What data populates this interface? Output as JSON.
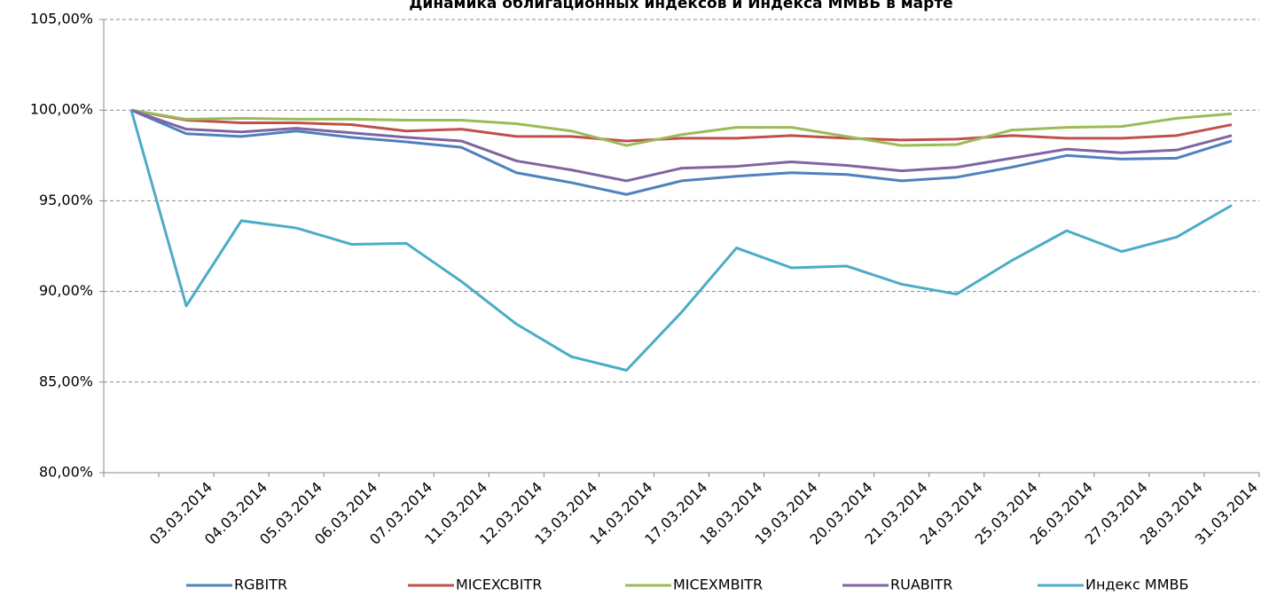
{
  "chart_data": {
    "type": "line",
    "title": "Динамика облигационных индексов и Индекса ММВБ в марте",
    "categories": [
      null,
      "03.03.2014",
      "04.03.2014",
      "05.03.2014",
      "06.03.2014",
      "07.03.2014",
      "11.03.2014",
      "12.03.2014",
      "13.03.2014",
      "14.03.2014",
      "17.03.2014",
      "18.03.2014",
      "19.03.2014",
      "20.03.2014",
      "21.03.2014",
      "24.03.2014",
      "25.03.2014",
      "26.03.2014",
      "27.03.2014",
      "28.03.2014",
      "31.03.2014"
    ],
    "series": [
      {
        "name": "RGBITR",
        "color": "#4f81bd",
        "values": [
          100,
          98.7,
          98.55,
          98.85,
          98.5,
          98.25,
          97.95,
          96.55,
          96.0,
          95.35,
          96.1,
          96.35,
          96.55,
          96.45,
          96.1,
          96.3,
          96.85,
          97.5,
          97.3,
          97.35,
          98.3
        ]
      },
      {
        "name": "MICEXCBITR",
        "color": "#c0504d",
        "values": [
          100,
          99.45,
          99.3,
          99.3,
          99.2,
          98.85,
          98.95,
          98.55,
          98.55,
          98.3,
          98.45,
          98.45,
          98.6,
          98.45,
          98.35,
          98.4,
          98.6,
          98.45,
          98.45,
          98.6,
          99.2
        ]
      },
      {
        "name": "MICEXMBITR",
        "color": "#9bbb59",
        "values": [
          100,
          99.5,
          99.55,
          99.5,
          99.5,
          99.45,
          99.45,
          99.25,
          98.85,
          98.05,
          98.65,
          99.05,
          99.05,
          98.55,
          98.05,
          98.1,
          98.9,
          99.05,
          99.1,
          99.55,
          99.8
        ]
      },
      {
        "name": "RUABITR",
        "color": "#8064a2",
        "values": [
          100,
          98.95,
          98.8,
          99.0,
          98.75,
          98.5,
          98.3,
          97.2,
          96.7,
          96.1,
          96.8,
          96.9,
          97.15,
          96.95,
          96.65,
          96.85,
          97.35,
          97.85,
          97.65,
          97.8,
          98.6
        ]
      },
      {
        "name": "Индекс ММВБ",
        "color": "#4bacc6",
        "values": [
          100,
          89.2,
          93.9,
          93.5,
          92.6,
          92.65,
          90.55,
          88.2,
          86.4,
          85.65,
          88.85,
          92.4,
          91.3,
          91.4,
          90.4,
          89.85,
          91.7,
          93.35,
          92.2,
          93.0,
          94.75
        ]
      }
    ],
    "ylim": [
      80,
      105
    ],
    "yticks": [
      {
        "value": 80,
        "label": "80,00%"
      },
      {
        "value": 85,
        "label": "85,00%"
      },
      {
        "value": 90,
        "label": "90,00%"
      },
      {
        "value": 95,
        "label": "95,00%"
      },
      {
        "value": 100,
        "label": "100,00%"
      },
      {
        "value": 105,
        "label": "105,00%"
      }
    ],
    "grid": true,
    "legend": "bottom"
  }
}
